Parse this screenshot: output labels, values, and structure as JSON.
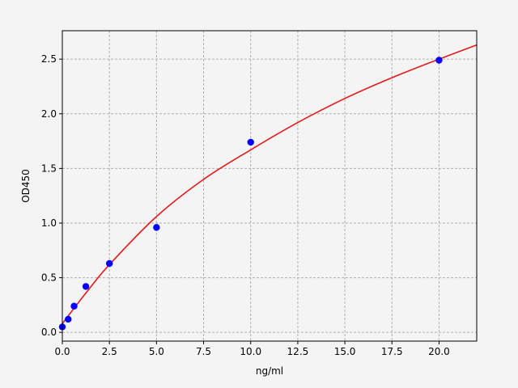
{
  "chart_data": {
    "type": "scatter",
    "title": "",
    "xlabel": "ng/ml",
    "ylabel": "OD450",
    "xlim": [
      0,
      22
    ],
    "ylim": [
      -0.08,
      2.76
    ],
    "grid": true,
    "x_ticks": [
      "0.0",
      "2.5",
      "5.0",
      "7.5",
      "10.0",
      "12.5",
      "15.0",
      "17.5",
      "20.0"
    ],
    "y_ticks": [
      "0.0",
      "0.5",
      "1.0",
      "1.5",
      "2.0",
      "2.5"
    ],
    "points": {
      "color": "#0000ff",
      "x": [
        0,
        0.3125,
        0.625,
        1.25,
        2.5,
        5,
        10,
        20
      ],
      "y": [
        0.05,
        0.12,
        0.24,
        0.42,
        0.63,
        0.96,
        1.74,
        2.49
      ]
    },
    "fit_curve": {
      "color": "#e41a1c",
      "x": [
        0,
        1.25,
        2.5,
        5,
        7.5,
        10,
        12.5,
        15,
        17.5,
        20,
        22
      ],
      "y": [
        0.08,
        0.36,
        0.62,
        1.06,
        1.4,
        1.67,
        1.92,
        2.14,
        2.33,
        2.5,
        2.63
      ]
    }
  }
}
